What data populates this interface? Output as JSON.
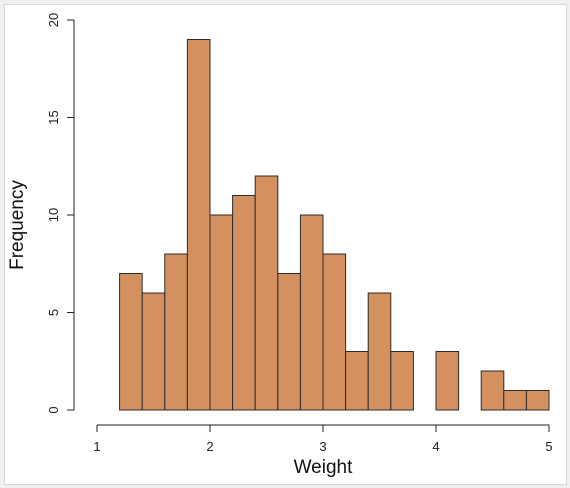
{
  "chart_data": {
    "type": "bar",
    "subtype": "histogram",
    "title": "",
    "xlabel": "Weight",
    "ylabel": "Frequency",
    "bin_width": 0.2,
    "bins": [
      {
        "start": 1.2,
        "end": 1.4,
        "count": 7
      },
      {
        "start": 1.4,
        "end": 1.6,
        "count": 6
      },
      {
        "start": 1.6,
        "end": 1.8,
        "count": 8
      },
      {
        "start": 1.8,
        "end": 2.0,
        "count": 19
      },
      {
        "start": 2.0,
        "end": 2.2,
        "count": 10
      },
      {
        "start": 2.2,
        "end": 2.4,
        "count": 11
      },
      {
        "start": 2.4,
        "end": 2.6,
        "count": 12
      },
      {
        "start": 2.6,
        "end": 2.8,
        "count": 7
      },
      {
        "start": 2.8,
        "end": 3.0,
        "count": 10
      },
      {
        "start": 3.0,
        "end": 3.2,
        "count": 8
      },
      {
        "start": 3.2,
        "end": 3.4,
        "count": 3
      },
      {
        "start": 3.4,
        "end": 3.6,
        "count": 6
      },
      {
        "start": 3.6,
        "end": 3.8,
        "count": 3
      },
      {
        "start": 3.8,
        "end": 4.0,
        "count": 0
      },
      {
        "start": 4.0,
        "end": 4.2,
        "count": 3
      },
      {
        "start": 4.2,
        "end": 4.4,
        "count": 0
      },
      {
        "start": 4.4,
        "end": 4.6,
        "count": 2
      },
      {
        "start": 4.6,
        "end": 4.8,
        "count": 1
      },
      {
        "start": 4.8,
        "end": 5.0,
        "count": 1
      }
    ],
    "xlim": [
      1,
      5
    ],
    "ylim": [
      0,
      20
    ],
    "x_ticks": [
      "1",
      "2",
      "3",
      "4",
      "5"
    ],
    "y_ticks": [
      "0",
      "5",
      "10",
      "15",
      "20"
    ],
    "grid": false,
    "legend": "none",
    "bar_color": "#d4915f",
    "bar_edge_color": "#2b2b2b"
  }
}
